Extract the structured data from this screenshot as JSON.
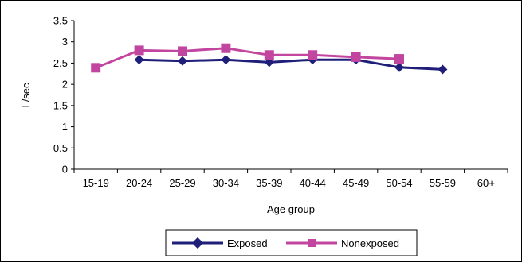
{
  "chart_data": {
    "type": "line",
    "title": "",
    "xlabel": "Age group",
    "ylabel": "L/sec",
    "categories": [
      "15-19",
      "20-24",
      "25-29",
      "30-34",
      "35-39",
      "40-44",
      "45-49",
      "50-54",
      "55-59",
      "60+"
    ],
    "ylim": [
      0,
      3.5
    ],
    "yticks": [
      "0",
      "0.5",
      "1",
      "1.5",
      "2",
      "2.5",
      "3",
      "3.5"
    ],
    "grid": false,
    "legend_position": "bottom",
    "series": [
      {
        "name": "Exposed",
        "color": "#1f1f7a",
        "marker": "diamond",
        "values": [
          null,
          2.58,
          2.55,
          2.58,
          2.52,
          2.58,
          2.58,
          2.4,
          2.35,
          null
        ]
      },
      {
        "name": "Nonexposed",
        "color": "#c2469f",
        "marker": "square",
        "values": [
          2.39,
          2.8,
          2.78,
          2.85,
          2.69,
          2.69,
          2.64,
          2.6,
          null,
          null
        ]
      }
    ]
  }
}
